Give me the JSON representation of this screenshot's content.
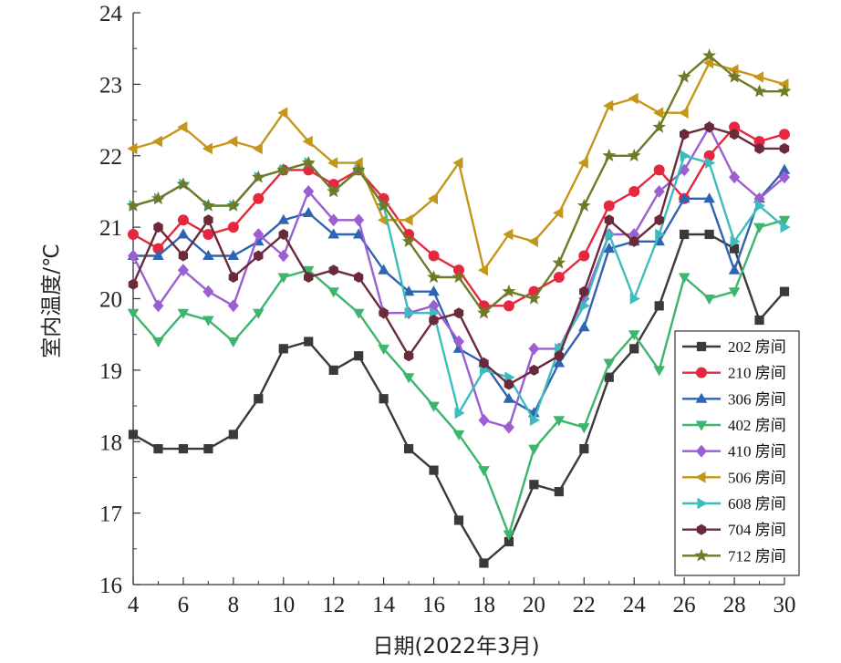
{
  "chart_data": {
    "type": "line",
    "xlabel": "日期(2022年3月)",
    "ylabel": "室内温度/℃",
    "xlim": [
      4,
      30
    ],
    "ylim": [
      16,
      24
    ],
    "xticks": [
      "4",
      "6",
      "8",
      "10",
      "12",
      "14",
      "16",
      "18",
      "20",
      "22",
      "24",
      "26",
      "28",
      "30"
    ],
    "yticks": [
      "16",
      "17",
      "18",
      "19",
      "20",
      "21",
      "22",
      "23",
      "24"
    ],
    "grid": false,
    "legend_position": "bottom-right",
    "x": [
      4,
      5,
      6,
      7,
      8,
      9,
      10,
      11,
      12,
      13,
      14,
      15,
      16,
      17,
      18,
      19,
      20,
      21,
      22,
      23,
      24,
      25,
      26,
      27,
      28,
      29,
      30
    ],
    "series": [
      {
        "name": "202 房间",
        "color": "#3a3a3a",
        "marker": "square",
        "values": [
          18.1,
          17.9,
          17.9,
          17.9,
          18.1,
          18.6,
          19.3,
          19.4,
          19.0,
          19.2,
          18.6,
          17.9,
          17.6,
          16.9,
          16.3,
          16.6,
          17.4,
          17.3,
          17.9,
          18.9,
          19.3,
          19.9,
          20.9,
          20.9,
          20.7,
          19.7,
          20.1
        ]
      },
      {
        "name": "210 房间",
        "color": "#e5283f",
        "marker": "circle",
        "values": [
          20.9,
          20.7,
          21.1,
          20.9,
          21.0,
          21.4,
          21.8,
          21.8,
          21.6,
          21.8,
          21.4,
          20.9,
          20.6,
          20.4,
          19.9,
          19.9,
          20.1,
          20.3,
          20.6,
          21.3,
          21.5,
          21.8,
          21.4,
          22.0,
          22.4,
          22.2,
          22.3
        ]
      },
      {
        "name": "306 房间",
        "color": "#2f64b3",
        "marker": "triangle-up",
        "values": [
          20.6,
          20.6,
          20.9,
          20.6,
          20.6,
          20.8,
          21.1,
          21.2,
          20.9,
          20.9,
          20.4,
          20.1,
          20.1,
          19.3,
          19.1,
          18.6,
          18.4,
          19.1,
          19.6,
          20.7,
          20.8,
          20.8,
          21.4,
          21.4,
          20.4,
          21.4,
          21.8
        ]
      },
      {
        "name": "402 房间",
        "color": "#3cb56d",
        "marker": "triangle-down",
        "values": [
          19.8,
          19.4,
          19.8,
          19.7,
          19.4,
          19.8,
          20.3,
          20.4,
          20.1,
          19.8,
          19.3,
          18.9,
          18.5,
          18.1,
          17.6,
          16.7,
          17.9,
          18.3,
          18.2,
          19.1,
          19.5,
          19.0,
          20.3,
          20.0,
          20.1,
          21.0,
          21.1
        ]
      },
      {
        "name": "410 房间",
        "color": "#9b5fd1",
        "marker": "diamond",
        "values": [
          20.6,
          19.9,
          20.4,
          20.1,
          19.9,
          20.9,
          20.6,
          21.5,
          21.1,
          21.1,
          19.8,
          19.8,
          19.9,
          19.4,
          18.3,
          18.2,
          19.3,
          19.3,
          20.0,
          20.9,
          20.9,
          21.5,
          21.8,
          22.4,
          21.7,
          21.4,
          21.7
        ]
      },
      {
        "name": "506 房间",
        "color": "#c4961a",
        "marker": "triangle-left",
        "values": [
          22.1,
          22.2,
          22.4,
          22.1,
          22.2,
          22.1,
          22.6,
          22.2,
          21.9,
          21.9,
          21.1,
          21.1,
          21.4,
          21.9,
          20.4,
          20.9,
          20.8,
          21.2,
          21.9,
          22.7,
          22.8,
          22.6,
          22.6,
          23.3,
          23.2,
          23.1,
          23.0
        ]
      },
      {
        "name": "608 房间",
        "color": "#3cbcbc",
        "marker": "triangle-right",
        "values": [
          21.3,
          21.4,
          21.6,
          21.3,
          21.3,
          21.7,
          21.8,
          21.9,
          21.5,
          21.8,
          21.3,
          19.8,
          19.8,
          18.4,
          19.0,
          18.9,
          18.3,
          19.3,
          19.9,
          20.9,
          20.0,
          20.9,
          22.0,
          21.9,
          20.8,
          21.3,
          21.0
        ]
      },
      {
        "name": "704 房间",
        "color": "#6b2a3a",
        "marker": "hexagon",
        "values": [
          20.2,
          21.0,
          20.6,
          21.1,
          20.3,
          20.6,
          20.9,
          20.3,
          20.4,
          20.3,
          19.8,
          19.2,
          19.7,
          19.8,
          19.1,
          18.8,
          19.0,
          19.2,
          20.1,
          21.1,
          20.8,
          21.1,
          22.3,
          22.4,
          22.3,
          22.1,
          22.1
        ]
      },
      {
        "name": "712 房间",
        "color": "#6e7a26",
        "marker": "star",
        "values": [
          21.3,
          21.4,
          21.6,
          21.3,
          21.3,
          21.7,
          21.8,
          21.9,
          21.5,
          21.8,
          21.3,
          20.8,
          20.3,
          20.3,
          19.8,
          20.1,
          20.0,
          20.5,
          21.3,
          22.0,
          22.0,
          22.4,
          23.1,
          23.4,
          23.1,
          22.9,
          22.9
        ]
      }
    ]
  }
}
